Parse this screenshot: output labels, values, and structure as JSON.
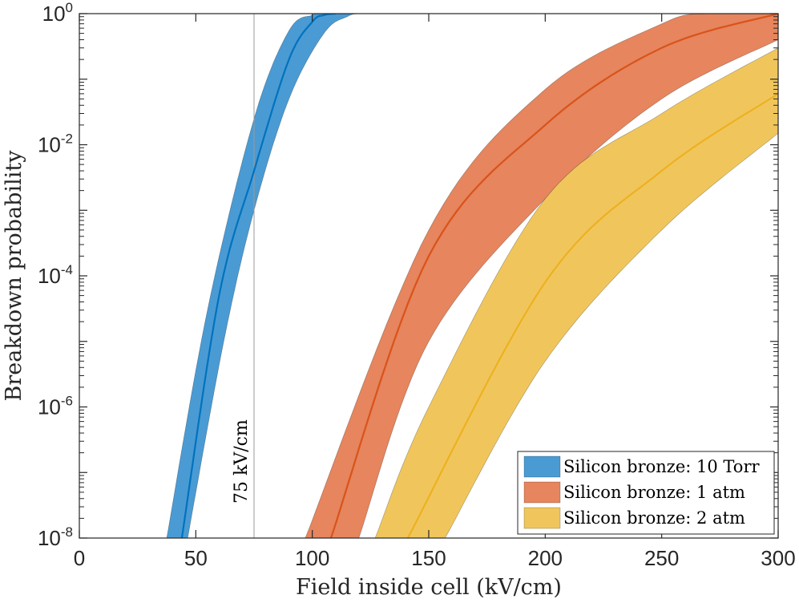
{
  "chart_data": {
    "type": "area",
    "title": "",
    "xlabel": "Field inside cell (kV/cm)",
    "ylabel": "Breakdown probability",
    "xlim": [
      0,
      300
    ],
    "ylim": [
      1e-08,
      1
    ],
    "yscale": "log",
    "grid": false,
    "legend_position": "bottom-right",
    "x_ticks": [
      0,
      50,
      100,
      150,
      200,
      250,
      300
    ],
    "x_tick_labels": [
      "0",
      "50",
      "100",
      "150",
      "200",
      "250",
      "300"
    ],
    "y_ticks": [
      1e-08,
      1e-06,
      0.0001,
      0.01,
      1
    ],
    "y_tick_labels": [
      {
        "base": "10",
        "exp": "-8"
      },
      {
        "base": "10",
        "exp": "-6"
      },
      {
        "base": "10",
        "exp": "-4"
      },
      {
        "base": "10",
        "exp": "-2"
      },
      {
        "base": "10",
        "exp": "0"
      }
    ],
    "vline": {
      "x": 75,
      "label": "75 kV/cm"
    },
    "series": [
      {
        "name": "Silicon bronze: 10 Torr",
        "line_color": "#0072BD",
        "band_color": "#4A9BD4",
        "center": [
          [
            44,
            1e-08
          ],
          [
            60,
            5e-05
          ],
          [
            75,
            0.004
          ],
          [
            90,
            0.2
          ],
          [
            100,
            0.75
          ],
          [
            105,
            0.95
          ],
          [
            110,
            1
          ]
        ],
        "lower": [
          [
            46.5,
            1e-08
          ],
          [
            62,
            1e-05
          ],
          [
            75,
            0.001
          ],
          [
            90,
            0.05
          ],
          [
            105,
            0.5
          ],
          [
            115,
            0.9
          ],
          [
            122,
            1
          ],
          [
            142,
            1
          ]
        ],
        "upper": [
          [
            37.5,
            1e-08
          ],
          [
            55,
            3e-05
          ],
          [
            75,
            0.025
          ],
          [
            90,
            0.55
          ],
          [
            100,
            0.95
          ],
          [
            103,
            1
          ]
        ]
      },
      {
        "name": "Silicon bronze: 1 atm",
        "line_color": "#D95319",
        "band_color": "#E6855E",
        "center": [
          [
            108,
            1e-08
          ],
          [
            150,
            0.0002
          ],
          [
            200,
            0.02
          ],
          [
            250,
            0.3
          ],
          [
            300,
            1
          ]
        ],
        "lower": [
          [
            120,
            1e-08
          ],
          [
            150,
            1e-05
          ],
          [
            200,
            0.0015
          ],
          [
            250,
            0.05
          ],
          [
            300,
            0.4
          ]
        ],
        "upper": [
          [
            97,
            1e-08
          ],
          [
            150,
            0.0005
          ],
          [
            200,
            0.07
          ],
          [
            250,
            0.7
          ],
          [
            270,
            1
          ],
          [
            300,
            1
          ]
        ]
      },
      {
        "name": "Silicon bronze: 2 atm",
        "line_color": "#EDB120",
        "band_color": "#F0C65C",
        "center": [
          [
            141,
            1e-08
          ],
          [
            200,
            8e-05
          ],
          [
            250,
            0.004
          ],
          [
            300,
            0.06
          ]
        ],
        "lower": [
          [
            157,
            1e-08
          ],
          [
            200,
            5e-06
          ],
          [
            250,
            0.0005
          ],
          [
            300,
            0.015
          ]
        ],
        "upper": [
          [
            127,
            1e-08
          ],
          [
            150,
            1e-06
          ],
          [
            200,
            0.0015
          ],
          [
            250,
            0.03
          ],
          [
            300,
            0.3
          ]
        ]
      }
    ]
  }
}
